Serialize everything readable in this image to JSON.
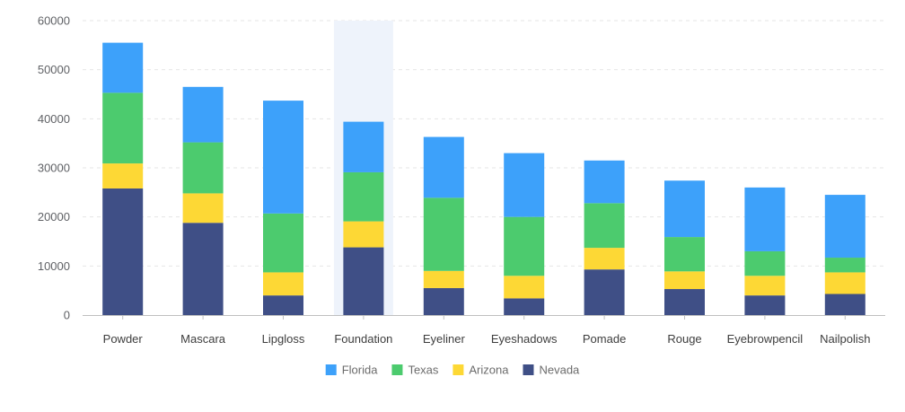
{
  "chart_data": {
    "type": "bar",
    "stacked": true,
    "categories": [
      "Powder",
      "Mascara",
      "Lipgloss",
      "Foundation",
      "Eyeliner",
      "Eyeshadows",
      "Pomade",
      "Rouge",
      "Eyebrowpencil",
      "Nailpolish"
    ],
    "series": [
      {
        "name": "Nevada",
        "color": "#3f4f86",
        "values": [
          25800,
          18800,
          4000,
          13800,
          5500,
          3400,
          9300,
          5300,
          4000,
          4300
        ]
      },
      {
        "name": "Arizona",
        "color": "#fdd835",
        "values": [
          5100,
          6000,
          4700,
          5300,
          3500,
          4600,
          4400,
          3600,
          4000,
          4400
        ]
      },
      {
        "name": "Texas",
        "color": "#4ccb6e",
        "values": [
          14400,
          10400,
          12000,
          10000,
          14900,
          12000,
          9100,
          7000,
          5000,
          3000
        ]
      },
      {
        "name": "Florida",
        "color": "#3da1fa",
        "values": [
          10200,
          11300,
          23000,
          10300,
          12400,
          13000,
          8700,
          11500,
          13000,
          12800
        ]
      }
    ],
    "legend_order": [
      "Florida",
      "Texas",
      "Arizona",
      "Nevada"
    ],
    "highlighted_category": "Foundation",
    "ylim": [
      0,
      60000
    ],
    "yticks": [
      0,
      10000,
      20000,
      30000,
      40000,
      50000,
      60000
    ],
    "grid": true,
    "legend_position": "bottom",
    "title": "",
    "xlabel": "",
    "ylabel": ""
  }
}
